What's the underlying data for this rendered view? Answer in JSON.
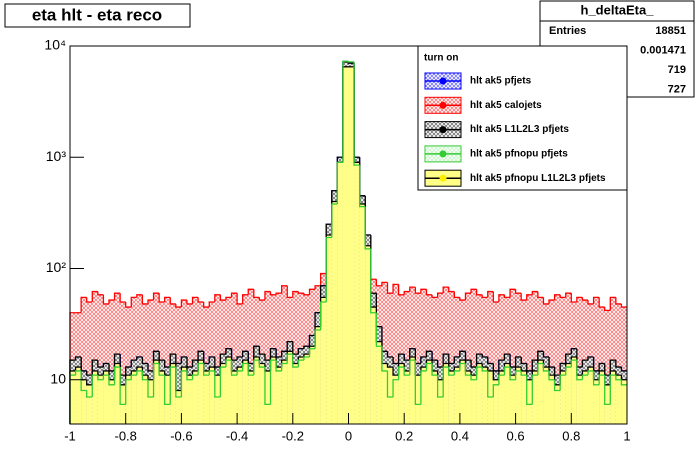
{
  "chart_data": {
    "type": "histogram",
    "title": "eta hlt - eta reco",
    "log_y": true,
    "xlim": [
      -1,
      1
    ],
    "ylim": [
      4,
      10000
    ],
    "xticks": [
      -1,
      -0.8,
      -0.6,
      -0.4,
      -0.2,
      0,
      0.2,
      0.4,
      0.6,
      0.8,
      1
    ],
    "yticks": [
      {
        "value": 10,
        "label": "10"
      },
      {
        "value": 100,
        "label": "10²"
      },
      {
        "value": 1000,
        "label": "10³"
      },
      {
        "value": 10000,
        "label": "10⁴"
      }
    ],
    "legend_title": "turn on",
    "legend_position": "upper right",
    "bins": [
      -1,
      -0.98,
      -0.96,
      -0.94,
      -0.92,
      -0.9,
      -0.88,
      -0.86,
      -0.84,
      -0.82,
      -0.8,
      -0.78,
      -0.76,
      -0.74,
      -0.72,
      -0.7,
      -0.68,
      -0.66,
      -0.64,
      -0.62,
      -0.6,
      -0.58,
      -0.56,
      -0.54,
      -0.52,
      -0.5,
      -0.48,
      -0.46,
      -0.44,
      -0.42,
      -0.4,
      -0.38,
      -0.36,
      -0.34,
      -0.32,
      -0.3,
      -0.28,
      -0.26,
      -0.24,
      -0.22,
      -0.2,
      -0.18,
      -0.16,
      -0.14,
      -0.12,
      -0.1,
      -0.08,
      -0.06,
      -0.04,
      -0.02,
      0,
      0.02,
      0.04,
      0.06,
      0.08,
      0.1,
      0.12,
      0.14,
      0.16,
      0.18,
      0.2,
      0.22,
      0.24,
      0.26,
      0.28,
      0.3,
      0.32,
      0.34,
      0.36,
      0.38,
      0.4,
      0.42,
      0.44,
      0.46,
      0.48,
      0.5,
      0.52,
      0.54,
      0.56,
      0.58,
      0.6,
      0.62,
      0.64,
      0.66,
      0.68,
      0.7,
      0.72,
      0.74,
      0.76,
      0.78,
      0.8,
      0.82,
      0.84,
      0.86,
      0.88,
      0.9,
      0.92,
      0.94,
      0.96,
      0.98,
      1
    ],
    "series": [
      {
        "name": "hlt ak5 pfjets",
        "color": "#0000ff",
        "fill": "#0000ff",
        "hatch": true,
        "values": [
          15,
          16,
          12,
          11,
          15,
          13,
          14,
          12,
          17,
          11,
          13,
          15,
          16,
          14,
          12,
          18,
          15,
          13,
          17,
          14,
          16,
          13,
          15,
          18,
          14,
          16,
          13,
          17,
          19,
          15,
          16,
          18,
          14,
          20,
          17,
          15,
          19,
          16,
          18,
          22,
          17,
          19,
          20,
          25,
          40,
          70,
          250,
          500,
          1000,
          7200,
          7000,
          1000,
          450,
          200,
          60,
          30,
          18,
          16,
          14,
          17,
          15,
          19,
          14,
          16,
          18,
          15,
          13,
          17,
          14,
          16,
          18,
          15,
          13,
          17,
          16,
          14,
          12,
          15,
          17,
          13,
          16,
          14,
          12,
          15,
          18,
          16,
          13,
          11,
          14,
          17,
          19,
          13,
          15,
          16,
          12,
          14,
          11,
          15,
          13,
          12
        ]
      },
      {
        "name": "hlt ak5 calojets",
        "color": "#ff0000",
        "fill": "#ff0000",
        "hatch": true,
        "values": [
          40,
          40,
          55,
          50,
          62,
          58,
          48,
          52,
          60,
          50,
          45,
          55,
          58,
          48,
          52,
          60,
          50,
          55,
          48,
          45,
          52,
          48,
          55,
          50,
          45,
          50,
          58,
          52,
          55,
          60,
          48,
          58,
          65,
          55,
          52,
          62,
          58,
          60,
          70,
          55,
          62,
          60,
          58,
          65,
          70,
          90,
          150,
          250,
          380,
          300,
          320,
          380,
          230,
          130,
          80,
          70,
          75,
          60,
          72,
          58,
          62,
          68,
          60,
          65,
          58,
          55,
          60,
          68,
          62,
          55,
          52,
          60,
          65,
          58,
          55,
          62,
          50,
          58,
          55,
          65,
          60,
          52,
          58,
          62,
          55,
          48,
          52,
          58,
          55,
          60,
          50,
          55,
          52,
          48,
          55,
          45,
          42,
          55,
          48,
          45
        ]
      },
      {
        "name": "hlt ak5 L1L2L3 pfjets",
        "color": "#000000",
        "fill": "#000000",
        "hatch": true,
        "values": [
          15,
          16,
          12,
          11,
          15,
          13,
          14,
          12,
          17,
          11,
          13,
          15,
          16,
          14,
          12,
          18,
          15,
          13,
          17,
          14,
          16,
          13,
          15,
          18,
          14,
          16,
          13,
          17,
          19,
          15,
          16,
          18,
          14,
          20,
          17,
          15,
          19,
          16,
          18,
          22,
          17,
          19,
          20,
          25,
          40,
          70,
          250,
          500,
          1000,
          7200,
          7000,
          1000,
          450,
          200,
          60,
          30,
          18,
          16,
          14,
          17,
          15,
          19,
          14,
          16,
          18,
          15,
          13,
          17,
          14,
          16,
          18,
          15,
          13,
          17,
          16,
          14,
          12,
          15,
          17,
          13,
          16,
          14,
          12,
          15,
          18,
          16,
          13,
          11,
          14,
          17,
          19,
          13,
          15,
          16,
          12,
          14,
          11,
          15,
          13,
          12
        ]
      },
      {
        "name": "hlt ak5 pfnopu pfjets",
        "color": "#33cc33",
        "fill": "#99ee99",
        "hatch": true,
        "values": [
          11,
          12,
          8,
          7,
          11,
          10,
          11,
          9,
          13,
          6,
          10,
          11,
          12,
          10,
          7,
          14,
          11,
          6,
          13,
          7,
          12,
          10,
          11,
          14,
          11,
          12,
          7,
          13,
          15,
          11,
          12,
          14,
          11,
          15,
          13,
          6,
          15,
          12,
          14,
          17,
          13,
          15,
          16,
          19,
          28,
          50,
          190,
          380,
          900,
          7300,
          7200,
          850,
          360,
          150,
          40,
          20,
          12,
          7,
          10,
          13,
          11,
          15,
          6,
          12,
          14,
          11,
          7,
          13,
          11,
          12,
          14,
          11,
          10,
          13,
          12,
          7,
          9,
          11,
          13,
          10,
          12,
          11,
          6,
          11,
          14,
          12,
          10,
          8,
          11,
          13,
          15,
          10,
          11,
          12,
          9,
          11,
          6,
          11,
          10,
          9
        ]
      },
      {
        "name": "hlt ak5 pfnopu L1L2L3 pfjets",
        "color": "#000000",
        "fill": "#ffff88",
        "hatch": false,
        "values": [
          12,
          13,
          10,
          9,
          12,
          11,
          12,
          10,
          14,
          9,
          11,
          12,
          13,
          11,
          10,
          15,
          12,
          11,
          14,
          8,
          13,
          11,
          12,
          15,
          12,
          13,
          11,
          14,
          16,
          12,
          13,
          15,
          12,
          16,
          14,
          12,
          16,
          13,
          15,
          18,
          14,
          16,
          17,
          20,
          30,
          55,
          200,
          400,
          900,
          6500,
          6500,
          900,
          380,
          160,
          45,
          22,
          14,
          13,
          11,
          14,
          12,
          16,
          11,
          13,
          15,
          12,
          10,
          14,
          12,
          13,
          15,
          12,
          11,
          14,
          13,
          12,
          10,
          12,
          14,
          11,
          13,
          12,
          10,
          12,
          15,
          13,
          11,
          9,
          12,
          14,
          16,
          11,
          12,
          13,
          10,
          12,
          9,
          12,
          11,
          10
        ]
      }
    ],
    "draw_order": [
      1,
      0,
      2,
      4,
      3
    ],
    "stats": {
      "name": "h_deltaEta_",
      "rows": [
        {
          "label": "Entries",
          "value": 18851
        },
        {
          "value": 0.001471
        },
        {
          "value": 719
        },
        {
          "value": 727
        }
      ]
    }
  }
}
